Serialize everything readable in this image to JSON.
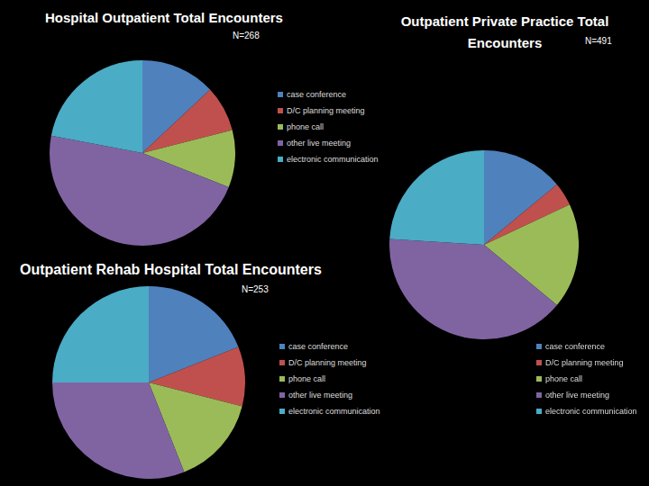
{
  "chart_data": [
    {
      "type": "pie",
      "title": "Hospital Outpatient Total Encounters",
      "subtitle": "N=268",
      "categories": [
        "case conference",
        "D/C planning meeting",
        "phone call",
        "other live meeting",
        "electronic communication"
      ],
      "values": [
        13,
        8,
        10,
        47,
        22
      ],
      "colors": [
        "#4f81bd",
        "#c0504d",
        "#9bbb59",
        "#8064a2",
        "#4bacc6"
      ],
      "legend": "right"
    },
    {
      "type": "pie",
      "title": "Outpatient Private Practice Total Encounters",
      "subtitle": "N=491",
      "categories": [
        "case conference",
        "D/C planning meeting",
        "phone call",
        "other live meeting",
        "electronic communication"
      ],
      "values": [
        14,
        4,
        18,
        40,
        24
      ],
      "colors": [
        "#4f81bd",
        "#c0504d",
        "#9bbb59",
        "#8064a2",
        "#4bacc6"
      ],
      "legend": "bottom"
    },
    {
      "type": "pie",
      "title": "Outpatient Rehab Hospital Total Encounters",
      "subtitle": "N=253",
      "categories": [
        "case conference",
        "D/C planning meeting",
        "phone call",
        "other live meeting",
        "electronic communication"
      ],
      "values": [
        19,
        10,
        15,
        31,
        25
      ],
      "colors": [
        "#4f81bd",
        "#c0504d",
        "#9bbb59",
        "#8064a2",
        "#4bacc6"
      ],
      "legend": "right"
    }
  ]
}
